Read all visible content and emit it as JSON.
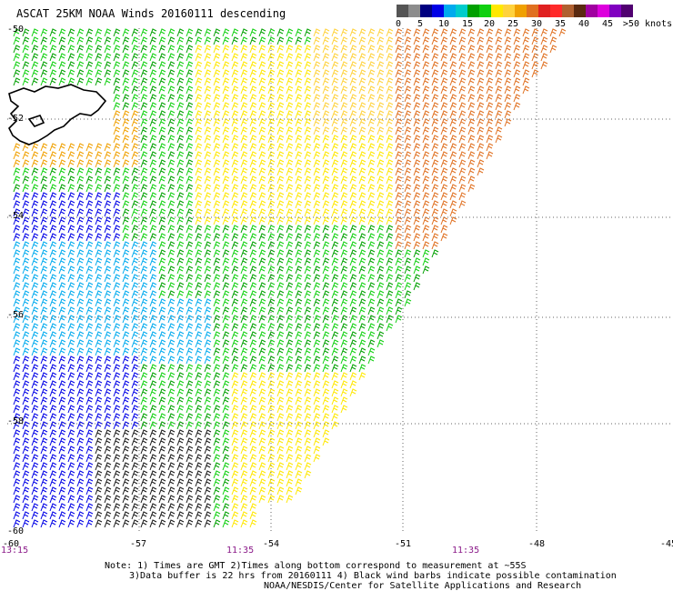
{
  "title": "ASCAT 25KM NOAA Winds 20160111 descending",
  "legend": {
    "colors": [
      "#555555",
      "#8c8c8c",
      "#000080",
      "#0000e6",
      "#00aaee",
      "#00cccc",
      "#00a000",
      "#10d010",
      "#ffe800",
      "#ffd23c",
      "#f0a000",
      "#e07020",
      "#e02020",
      "#ff2a2a",
      "#b06030",
      "#5a2a10",
      "#a000a0",
      "#dd00dd",
      "#8000c0",
      "#500070"
    ],
    "labels": [
      "0",
      "5",
      "10",
      "15",
      "20",
      "25",
      "30",
      "35",
      "40",
      "45",
      ">50 knots"
    ]
  },
  "map": {
    "lat_labels": [
      "-50",
      "-52",
      "-54",
      "-56",
      "-58",
      "-60"
    ],
    "lon_labels": [
      "-60",
      "-57",
      "-54",
      "-51",
      "-48",
      "-45"
    ],
    "time_labels": [
      "13:15",
      "11:35",
      "11:35"
    ]
  },
  "notes": {
    "line1": "Note: 1) Times are GMT 2)Times along bottom correspond to measurement at ~55S",
    "line2": "3)Data buffer is 22 hrs from 20160111 4) Black wind barbs indicate possible contamination",
    "line3": "NOAA/NESDIS/Center for Satellite Applications and Research"
  }
}
